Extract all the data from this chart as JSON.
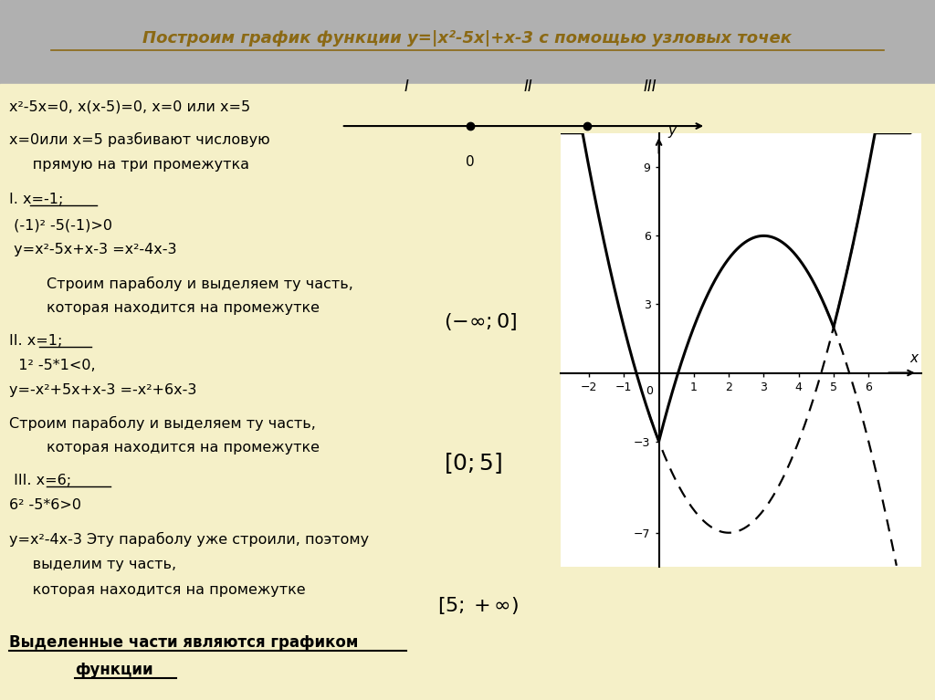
{
  "title": "Построим график функции y=|x²-5x|+x-3 с помощью узловых точек",
  "bg_color": "#f5f0c8",
  "bg_top_color": "#b0b0b0",
  "title_color": "#8B6914",
  "graph_xlim": [
    -2.8,
    7.5
  ],
  "graph_ylim": [
    -8.5,
    10.5
  ],
  "graph_xticks": [
    -2,
    -1,
    1,
    2,
    3,
    4,
    5,
    6
  ],
  "graph_yticks": [
    -7,
    -3,
    3,
    6,
    9
  ],
  "line1": "х²-5х=0, х(х-5)=0, х=0 или х=5",
  "line2a": "х=0или х=5 разбивают числовую",
  "line2b": "     прямую на три промежутка",
  "line3": "I. х=-1;",
  "line4": " (-1)² -5(-1)>0",
  "line5": " у=х²-5х+х-3 =х²-4х-3",
  "line6": "        Строим параболу и выделяем ту часть,",
  "line7": "        которая находится на промежутке",
  "line8": "II. х=1;",
  "line9": "  1² -5*1<0,",
  "line10": "у=-х²+5х+х-3 =-х²+6х-3",
  "line11": "Строим параболу и выделяем ту часть,",
  "line12": "        которая находится на промежутке",
  "line13": " III. х=6;",
  "line14": "6² -5*6>0",
  "line15": "у=х²-4х-3 Эту параболу уже строили, поэтому",
  "line16": "     выделим ту часть,",
  "line17": "     которая находится на промежутке",
  "line18a": "Выделенные части являются графиком",
  "line18b": "     функции",
  "int1": "(-∞;0]",
  "int2": "[0;5]",
  "int3": "[5;+∞)",
  "roman_I": "I",
  "roman_II": "II",
  "roman_III": "III"
}
